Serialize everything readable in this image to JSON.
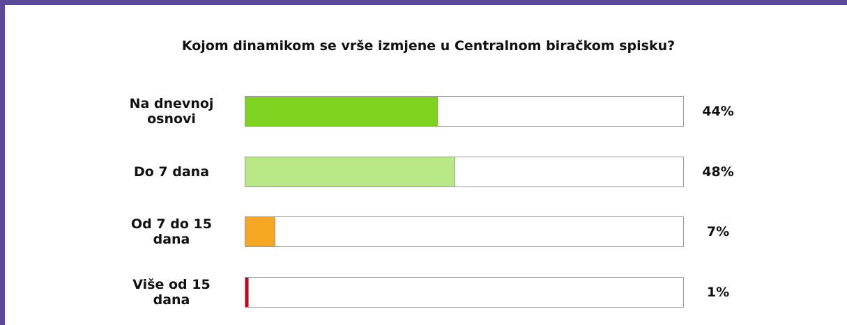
{
  "chart_data": {
    "type": "hbar",
    "title": "Kojom dinamikom se vrše izmjene u Centralnom biračkom spisku?",
    "categories": [
      "Na dnevnoj osnovi",
      "Do 7 dana",
      "Od 7 do 15 dana",
      "Više od 15 dana"
    ],
    "values": [
      44,
      48,
      7,
      1
    ],
    "value_labels": [
      "44%",
      "48%",
      "7%",
      "1%"
    ],
    "colors": [
      "#7ed321",
      "#b8e986",
      "#f5a623",
      "#d0021b"
    ],
    "xlim": [
      0,
      100
    ]
  }
}
